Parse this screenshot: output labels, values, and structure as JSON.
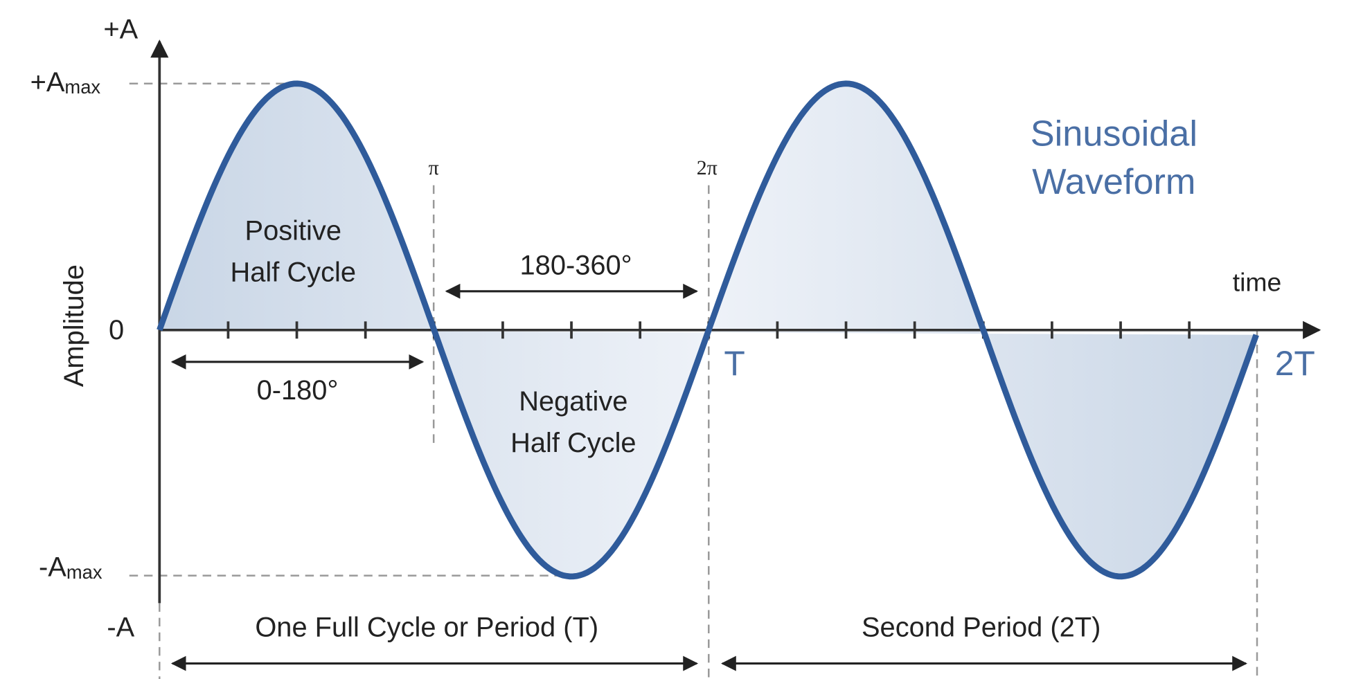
{
  "axes": {
    "y_top": "+A",
    "y_max": {
      "text": "+A",
      "subscript": "max"
    },
    "zero": "0",
    "y_min": {
      "text": "-A",
      "subscript": "max"
    },
    "y_bottom": "-A",
    "y_title": "Amplitude",
    "x_title": "time",
    "pi": "π",
    "two_pi": "2π",
    "period": "T",
    "two_period": "2T"
  },
  "title": [
    "Sinusoidal",
    "Waveform"
  ],
  "annotations": {
    "positive": [
      "Positive",
      "Half Cycle"
    ],
    "negative": [
      "Negative",
      "Half Cycle"
    ],
    "first_half": "0-180°",
    "second_half": "180-360°",
    "first_period": "One Full Cycle or Period (T)",
    "second_period": "Second Period (2T)"
  }
}
